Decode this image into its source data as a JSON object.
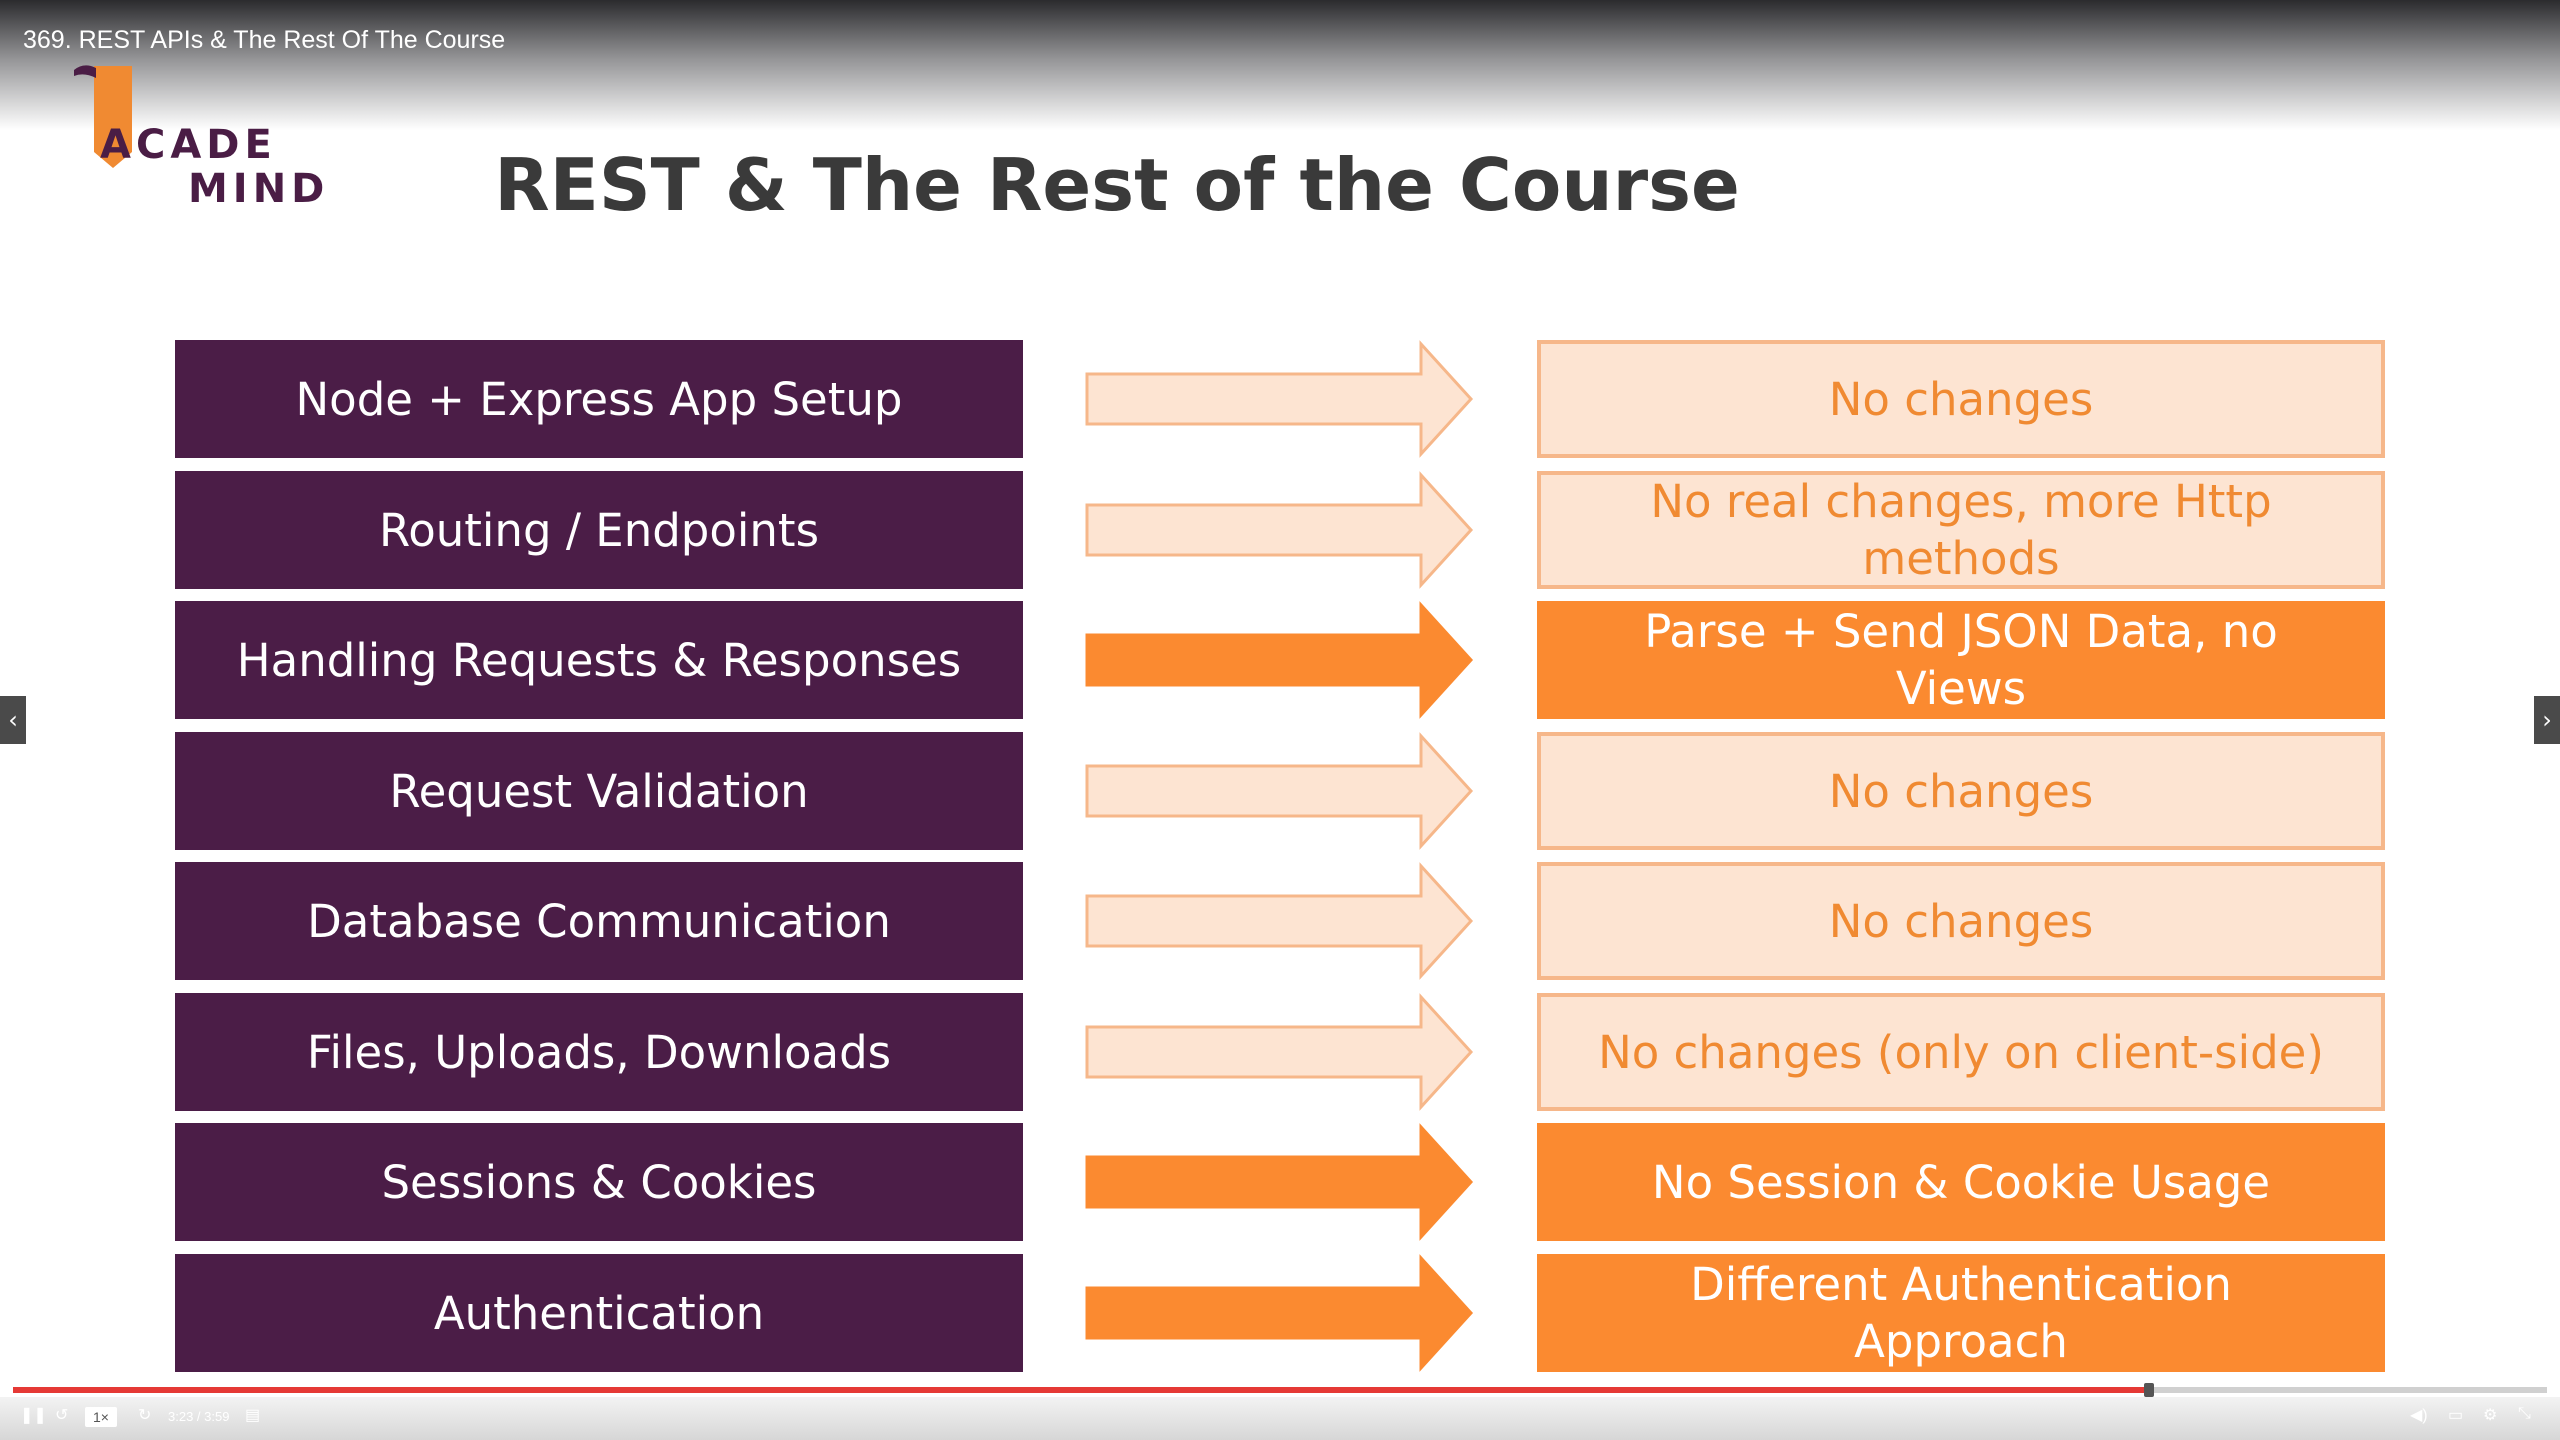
{
  "video": {
    "title": "369. REST APIs & The Rest Of The Course"
  },
  "logo": {
    "line1": "ACADE",
    "line2": "MIND",
    "brand_color": "#4a1d45",
    "accent_color": "#f08a32"
  },
  "slide": {
    "title": "REST & The Rest of the Course",
    "rows": [
      {
        "left": "Node + Express App Setup",
        "right": "No changes",
        "emphasis": "light"
      },
      {
        "left": "Routing / Endpoints",
        "right": "No real changes, more Http methods",
        "emphasis": "light"
      },
      {
        "left": "Handling Requests & Responses",
        "right": "Parse + Send JSON Data, no Views",
        "emphasis": "strong"
      },
      {
        "left": "Request Validation",
        "right": "No changes",
        "emphasis": "light"
      },
      {
        "left": "Database Communication",
        "right": "No changes",
        "emphasis": "light"
      },
      {
        "left": "Files, Uploads, Downloads",
        "right": "No changes (only on client-side)",
        "emphasis": "light"
      },
      {
        "left": "Sessions & Cookies",
        "right": "No Session & Cookie Usage",
        "emphasis": "strong"
      },
      {
        "left": "Authentication",
        "right": "Different Authentication Approach",
        "emphasis": "strong"
      }
    ],
    "colors": {
      "left_box": "#4b1d47",
      "light_fill": "#fde4d2",
      "light_border": "#f6b78a",
      "light_text": "#f08a32",
      "strong_fill": "#fb8a30"
    }
  },
  "nav": {
    "prev_icon": "chevron-left-icon",
    "next_icon": "chevron-right-icon"
  },
  "player": {
    "progress_fraction": 0.843,
    "speed_label": "1×",
    "time_label": "3:23 / 3:59",
    "icons": [
      "pause-icon",
      "rewind-icon",
      "forward-icon",
      "note-icon",
      "volume-icon",
      "captions-icon",
      "settings-icon",
      "fullscreen-icon"
    ]
  }
}
